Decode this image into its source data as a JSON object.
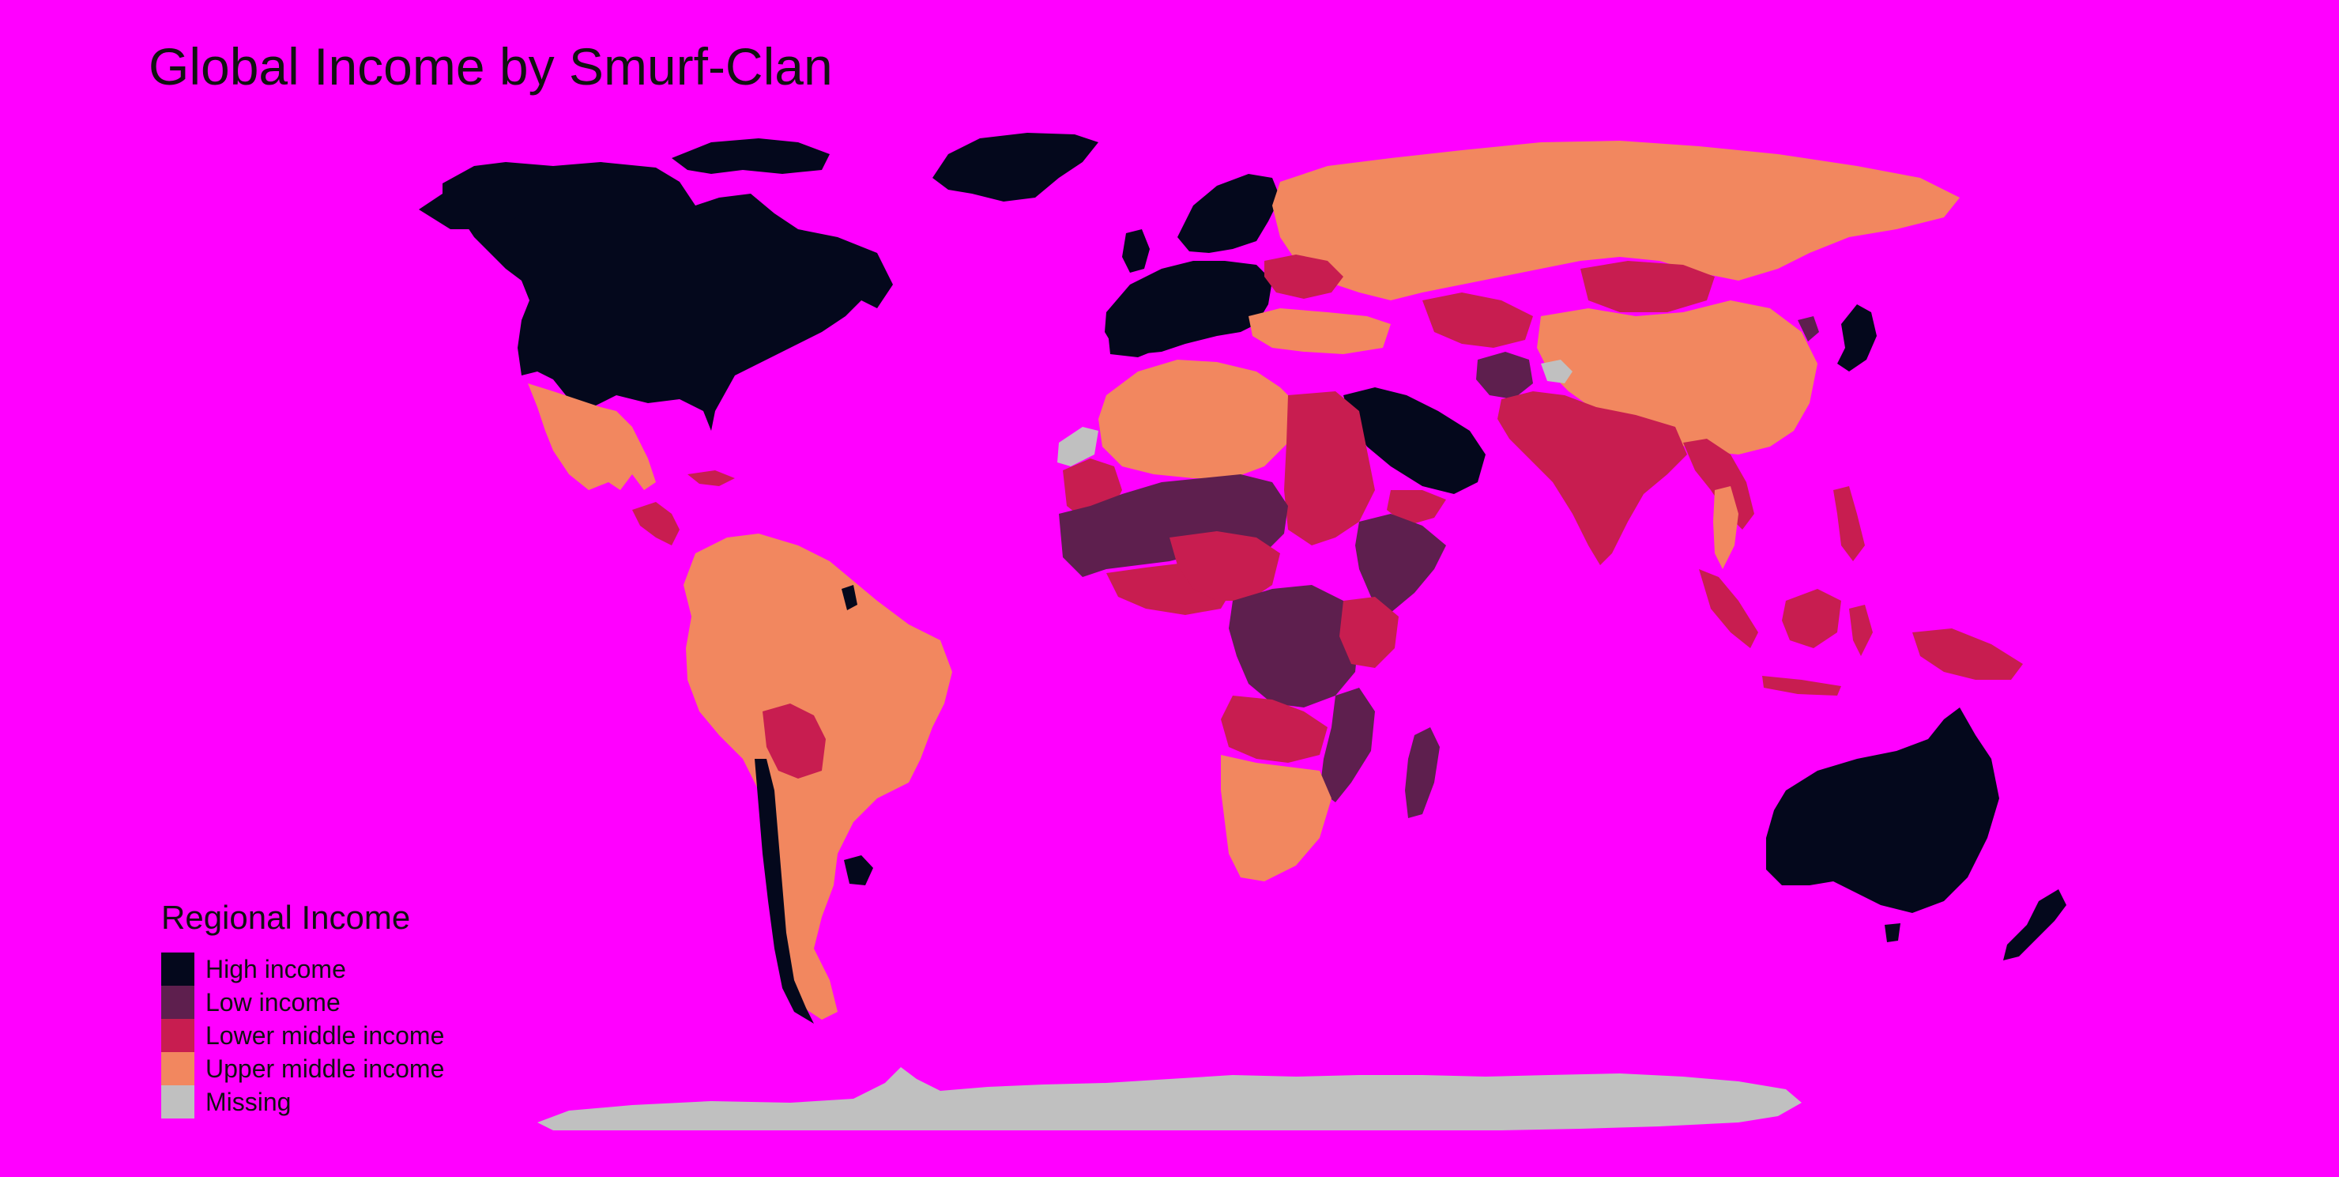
{
  "title": "Global Income by Smurf-Clan",
  "background_color": "#ff00ff",
  "legend": {
    "title": "Regional Income",
    "items": [
      {
        "label": "High income",
        "color": "#04081c"
      },
      {
        "label": "Low income",
        "color": "#5e1f4e"
      },
      {
        "label": "Lower middle income",
        "color": "#c81d50"
      },
      {
        "label": "Upper middle income",
        "color": "#f2875f"
      },
      {
        "label": "Missing",
        "color": "#c0c0c0"
      }
    ]
  },
  "regions": [
    {
      "name": "Canada & USA",
      "category": "High income"
    },
    {
      "name": "Greenland",
      "category": "High income"
    },
    {
      "name": "Western Europe",
      "category": "High income"
    },
    {
      "name": "Scandinavia",
      "category": "High income"
    },
    {
      "name": "Saudi Arabia & Gulf",
      "category": "High income"
    },
    {
      "name": "Japan",
      "category": "High income"
    },
    {
      "name": "Australia",
      "category": "High income"
    },
    {
      "name": "New Zealand",
      "category": "High income"
    },
    {
      "name": "Chile",
      "category": "High income"
    },
    {
      "name": "Uruguay",
      "category": "High income"
    },
    {
      "name": "Russia",
      "category": "Upper middle income"
    },
    {
      "name": "China",
      "category": "Upper middle income"
    },
    {
      "name": "Mexico",
      "category": "Upper middle income"
    },
    {
      "name": "South America",
      "category": "Upper middle income"
    },
    {
      "name": "Argentina",
      "category": "Upper middle income"
    },
    {
      "name": "North Africa",
      "category": "Upper middle income"
    },
    {
      "name": "Southern Africa",
      "category": "Upper middle income"
    },
    {
      "name": "Turkey & Balkans",
      "category": "Upper middle income"
    },
    {
      "name": "Thailand",
      "category": "Upper middle income"
    },
    {
      "name": "India",
      "category": "Lower middle income"
    },
    {
      "name": "Mongolia",
      "category": "Lower middle income"
    },
    {
      "name": "Ukraine",
      "category": "Lower middle income"
    },
    {
      "name": "Egypt & Sudan",
      "category": "Lower middle income"
    },
    {
      "name": "West Africa coast",
      "category": "Lower middle income"
    },
    {
      "name": "Central Africa",
      "category": "Lower middle income"
    },
    {
      "name": "Angola & Zambia",
      "category": "Lower middle income"
    },
    {
      "name": "Kenya & Tanzania",
      "category": "Lower middle income"
    },
    {
      "name": "Indonesia",
      "category": "Lower middle income"
    },
    {
      "name": "Papua New Guinea",
      "category": "Lower middle income"
    },
    {
      "name": "Philippines",
      "category": "Lower middle income"
    },
    {
      "name": "Bolivia",
      "category": "Lower middle income"
    },
    {
      "name": "Central America",
      "category": "Lower middle income"
    },
    {
      "name": "Central Asia",
      "category": "Lower middle income"
    },
    {
      "name": "Sahel",
      "category": "Low income"
    },
    {
      "name": "DR Congo",
      "category": "Low income"
    },
    {
      "name": "Ethiopia & Somalia",
      "category": "Low income"
    },
    {
      "name": "Mozambique & Malawi",
      "category": "Low income"
    },
    {
      "name": "Madagascar",
      "category": "Low income"
    },
    {
      "name": "Afghanistan",
      "category": "Low income"
    },
    {
      "name": "North Korea",
      "category": "Low income"
    },
    {
      "name": "Antarctica",
      "category": "Missing"
    },
    {
      "name": "Western Sahara",
      "category": "Missing"
    },
    {
      "name": "Kashmir",
      "category": "Missing"
    }
  ]
}
